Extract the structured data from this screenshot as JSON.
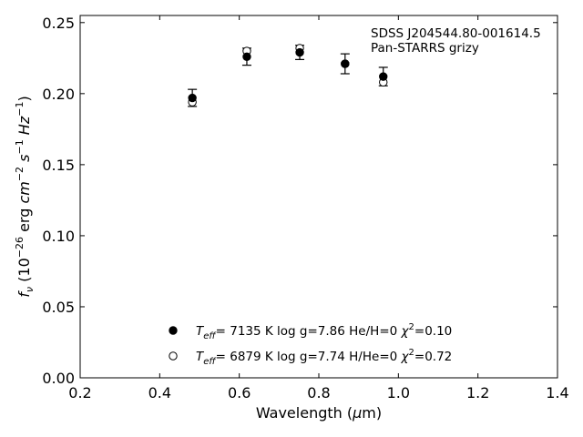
{
  "chart_data": {
    "type": "scatter",
    "xlabel": "Wavelength (μm)",
    "xlabel_parts": {
      "text": "Wavelength (",
      "unit": "μ",
      "unit_rest": "m)"
    },
    "ylabel": "f_ν (10^-26 erg cm^-2 s^-1 Hz^-1)",
    "xlim": [
      0.2,
      1.4
    ],
    "ylim": [
      0.0,
      0.255
    ],
    "xticks": [
      "0.2",
      "0.4",
      "0.6",
      "0.8",
      "1.0",
      "1.2",
      "1.4"
    ],
    "yticks": [
      "0.00",
      "0.05",
      "0.10",
      "0.15",
      "0.20",
      "0.25"
    ],
    "grid": false,
    "annotation": [
      "SDSS J204544.80-001614.5",
      "Pan-STARRS grizy"
    ],
    "observed": {
      "x": [
        0.482,
        0.619,
        0.752,
        0.866,
        0.962
      ],
      "y": [
        0.197,
        0.226,
        0.229,
        0.221,
        0.212
      ],
      "yerr": [
        0.006,
        0.006,
        0.005,
        0.007,
        0.0065
      ]
    },
    "models": [
      {
        "marker": "filled-circle",
        "label": {
          "teff": "7135 K",
          "logg": "log g=7.86",
          "comp": "He/H=0",
          "chi2": "=0.10"
        },
        "x": [
          0.482,
          0.619,
          0.752,
          0.866,
          0.962
        ],
        "y": [
          0.197,
          0.226,
          0.229,
          0.221,
          0.212
        ]
      },
      {
        "marker": "open-circle",
        "label": {
          "teff": "6879 K",
          "logg": "log g=7.74",
          "comp": "H/He=0",
          "chi2": "=0.72"
        },
        "x": [
          0.482,
          0.619,
          0.752,
          0.866,
          0.962
        ],
        "y": [
          0.194,
          0.23,
          0.232,
          0.221,
          0.208
        ]
      }
    ]
  }
}
